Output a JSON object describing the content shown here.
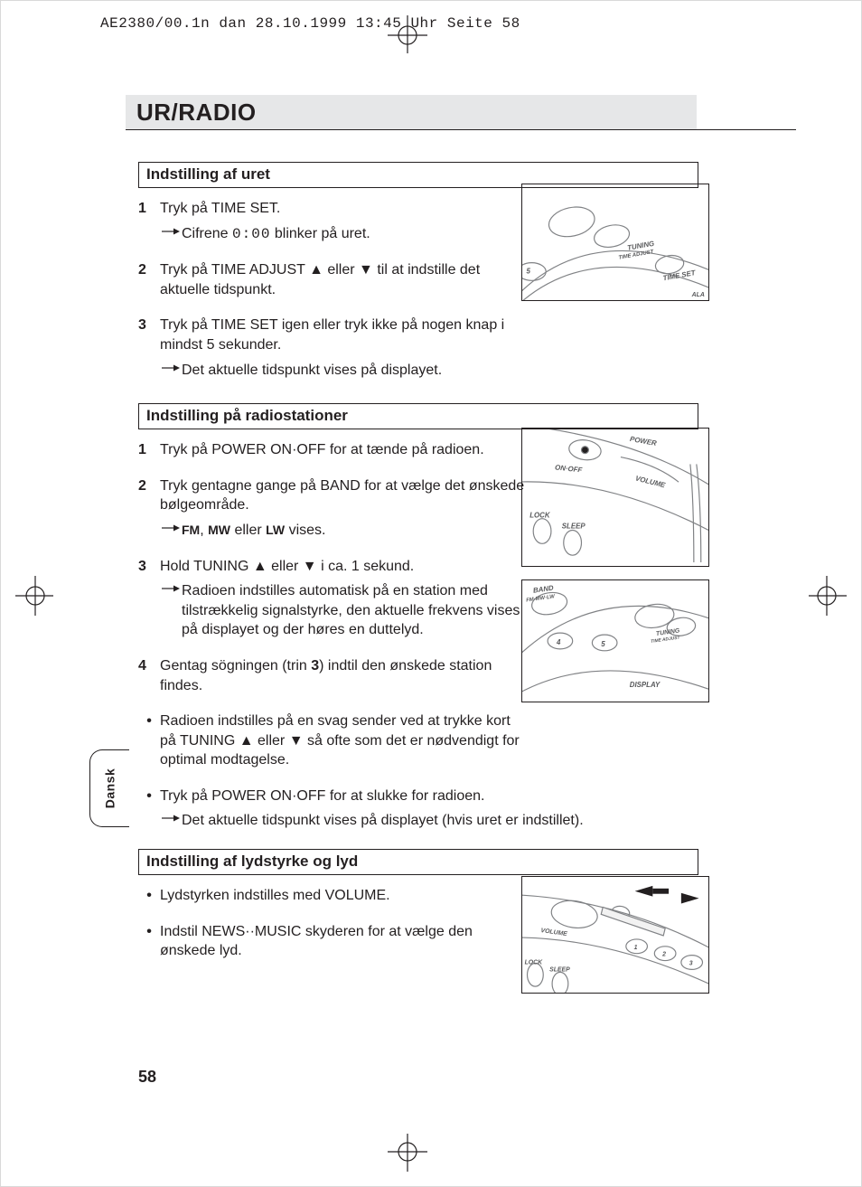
{
  "print": {
    "crop_info": "AE2380/00.1n dan  28.10.1999 13:45 Uhr  Seite 58"
  },
  "page": {
    "title": "UR/RADIO",
    "number": "58",
    "lang_tab": "Dansk"
  },
  "colors": {
    "text": "#231f20",
    "title_bg": "#e6e7e8",
    "rule": "#231f20",
    "page_bg": "#ffffff",
    "illus_stroke": "#808285",
    "illus_stroke_dark": "#231f20"
  },
  "typography": {
    "title_size_pt": 20,
    "title_weight": 800,
    "section_head_size_pt": 13,
    "section_head_weight": 700,
    "body_size_pt": 12,
    "body_line_height": 1.35,
    "crop_font": "monospace"
  },
  "sections": [
    {
      "key": "clock",
      "heading": "Indstilling af uret",
      "items": [
        {
          "n": "1",
          "text": "Tryk på TIME SET.",
          "sub": [
            {
              "arrow": true,
              "text_pre": "Cifrene ",
              "mono": "0:00",
              "text_post": " blinker på uret."
            }
          ]
        },
        {
          "n": "2",
          "text": "Tryk på TIME ADJUST ▲ eller ▼ til at indstille det aktuelle tidspunkt."
        },
        {
          "n": "3",
          "text": "Tryk på TIME SET igen eller tryk ikke på nogen knap i mindst 5 sekunder.",
          "sub": [
            {
              "arrow": true,
              "text": "Det aktuelle tidspunkt vises på displayet."
            }
          ]
        }
      ]
    },
    {
      "key": "tuning",
      "heading": "Indstilling på radiostationer",
      "items": [
        {
          "n": "1",
          "text": "Tryk på POWER ON·OFF for at tænde på radioen."
        },
        {
          "n": "2",
          "text": "Tryk gentagne gange på BAND for at vælge det ønskede bølgeområde.",
          "sub": [
            {
              "arrow": true,
              "html": "<b class='sm'>FM</b>, <b class='sm'>MW</b> eller <b class='sm'>LW</b> vises."
            }
          ]
        },
        {
          "n": "3",
          "text": "Hold TUNING ▲ eller ▼ i ca. 1 sekund.",
          "sub": [
            {
              "arrow": true,
              "text": "Radioen indstilles automatisk på en station med tilstrækkelig signalstyrke, den aktuelle frekvens vises på displayet og der høres en duttelyd."
            }
          ]
        },
        {
          "n": "4",
          "html": "Gentag sögningen (trin <b>3</b>) indtil den ønskede station findes."
        },
        {
          "bullet": "•",
          "text": "Radioen indstilles på en svag sender ved at trykke kort på TUNING ▲ eller ▼ så ofte som det er nødvendigt for optimal modtagelse."
        },
        {
          "bullet": "•",
          "text": "Tryk på POWER ON·OFF for at slukke for radioen.",
          "sub": [
            {
              "arrow": true,
              "text": "Det aktuelle tidspunkt vises på displayet (hvis uret er indstillet)."
            }
          ]
        }
      ]
    },
    {
      "key": "volume",
      "heading": "Indstilling af lydstyrke og lyd",
      "items": [
        {
          "bullet": "•",
          "text": "Lydstyrken indstilles med VOLUME."
        },
        {
          "bullet": "•",
          "text": "Indstil NEWS··MUSIC skyderen for at vælge den ønskede lyd."
        }
      ]
    }
  ],
  "illustrations": [
    {
      "key": "il1",
      "labels": [
        "5",
        "TUNING",
        "TIME ADJUST",
        "TIME SET",
        "ALA"
      ]
    },
    {
      "key": "il2",
      "labels": [
        "POWER",
        "ON·OFF",
        "VOLUME",
        "LOCK",
        "SLEEP"
      ]
    },
    {
      "key": "il3",
      "labels": [
        "BAND",
        "FM·MW·LW",
        "4",
        "5",
        "TUNING",
        "TIME ADJUST",
        "DISPLAY"
      ]
    },
    {
      "key": "il4",
      "labels": [
        "VOLUME",
        "1",
        "2",
        "3",
        "LOCK",
        "SLEEP"
      ],
      "has_slider_arrows": true
    }
  ]
}
